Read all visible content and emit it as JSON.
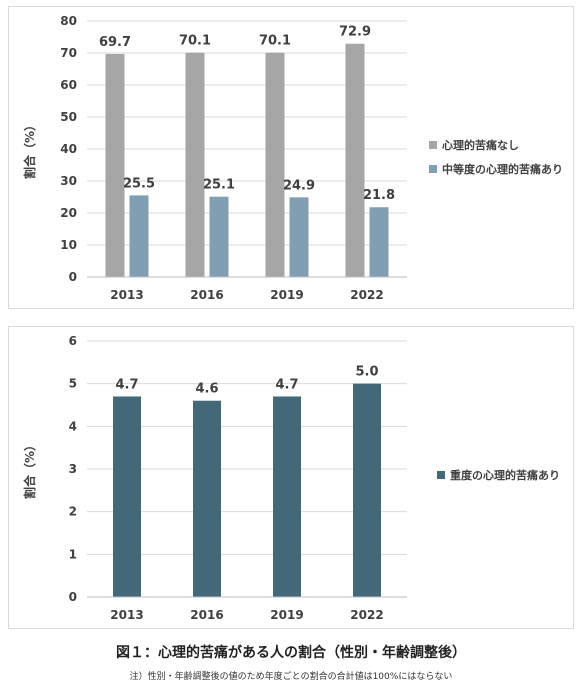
{
  "chart_data": [
    {
      "type": "bar",
      "categories": [
        "2013",
        "2016",
        "2019",
        "2022"
      ],
      "series": [
        {
          "name": "心理的苦痛なし",
          "values": [
            69.7,
            70.1,
            70.1,
            72.9
          ],
          "labels": [
            "69.7",
            "70.1",
            "70.1",
            "72.9"
          ],
          "color": "#a6a6a6"
        },
        {
          "name": "中等度の心理的苦痛あり",
          "values": [
            25.5,
            25.1,
            24.9,
            21.8
          ],
          "labels": [
            "25.5",
            "25.1",
            "24.9",
            "21.8"
          ],
          "color": "#7f9fb3"
        }
      ],
      "ylabel": "割合（%）",
      "ylim": [
        0,
        80
      ],
      "yticks": [
        "0",
        "10",
        "20",
        "30",
        "40",
        "50",
        "60",
        "70",
        "80"
      ],
      "grid": true,
      "legend": "right"
    },
    {
      "type": "bar",
      "categories": [
        "2013",
        "2016",
        "2019",
        "2022"
      ],
      "series": [
        {
          "name": "重度の心理的苦痛あり",
          "values": [
            4.7,
            4.6,
            4.7,
            5.0
          ],
          "labels": [
            "4.7",
            "4.6",
            "4.7",
            "5.0"
          ],
          "color": "#426977"
        }
      ],
      "ylabel": "割合（%）",
      "ylim": [
        0,
        6
      ],
      "yticks": [
        "0",
        "1",
        "2",
        "3",
        "4",
        "5",
        "6"
      ],
      "grid": true,
      "legend": "right"
    }
  ],
  "caption": "図１：心理的苦痛がある人の割合（性別・年齢調整後）",
  "note": "注）性別・年齢調整後の値のため年度ごとの割合の合計値は100%にはならない"
}
